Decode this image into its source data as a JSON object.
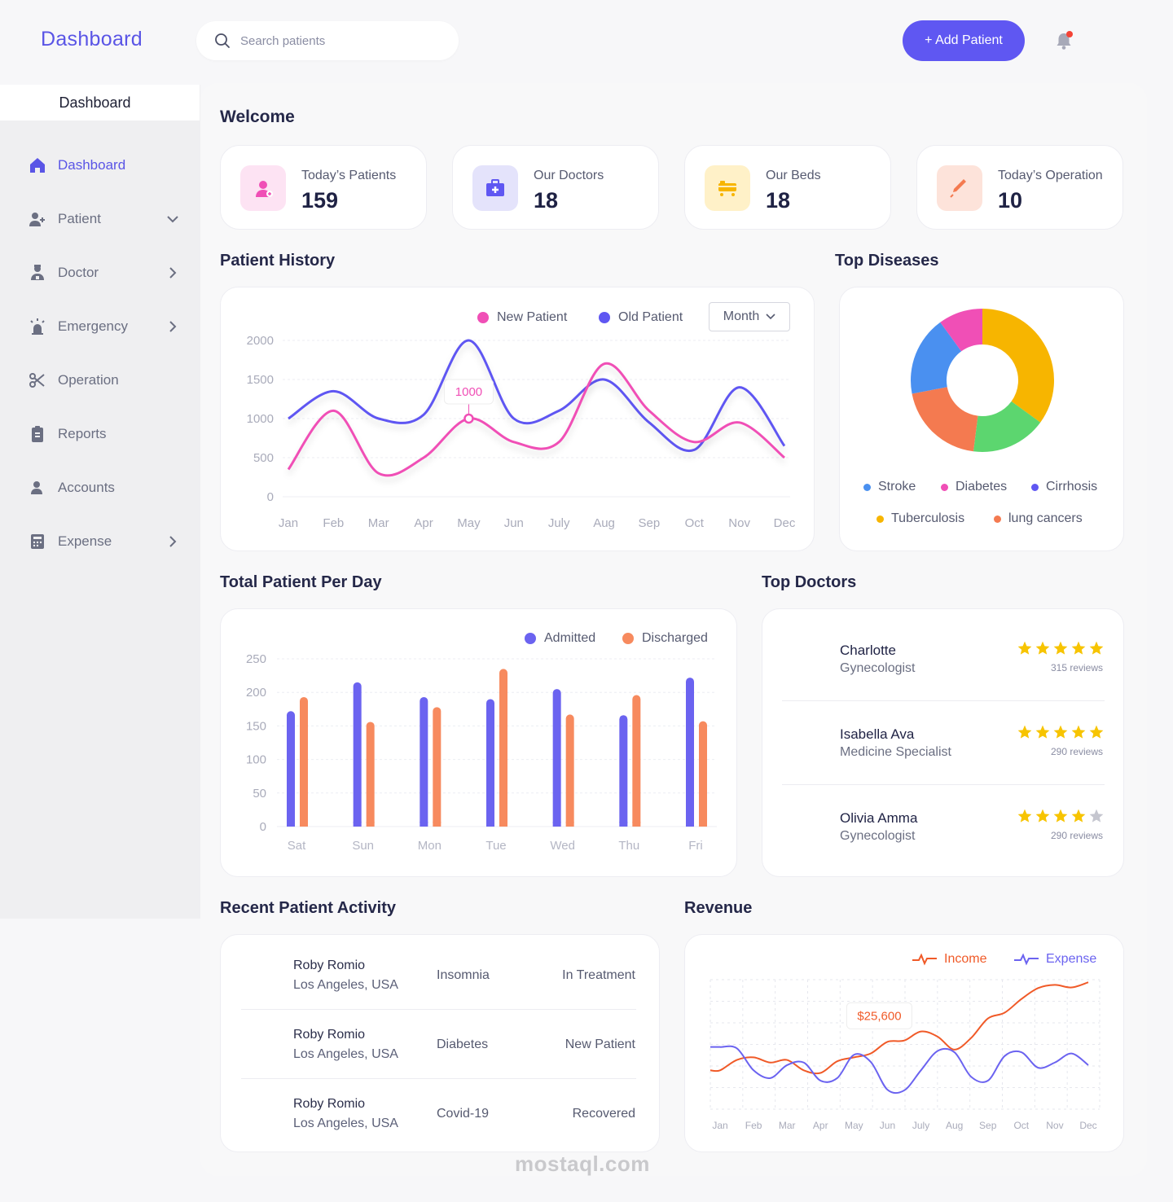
{
  "header": {
    "logo": "Dashboard",
    "search_placeholder": "Search patients",
    "add_button": "+ Add Patient"
  },
  "sidebar": {
    "title": "Dashboard",
    "items": [
      {
        "label": "Dashboard",
        "icon": "home-icon",
        "arrow": ""
      },
      {
        "label": "Patient",
        "icon": "add-user-icon",
        "arrow": "down"
      },
      {
        "label": "Doctor",
        "icon": "doctor-icon",
        "arrow": "right"
      },
      {
        "label": "Emergency",
        "icon": "siren-icon",
        "arrow": "right"
      },
      {
        "label": "Operation",
        "icon": "scissors-icon",
        "arrow": ""
      },
      {
        "label": "Reports",
        "icon": "clipboard-icon",
        "arrow": ""
      },
      {
        "label": "Accounts",
        "icon": "user-icon",
        "arrow": ""
      },
      {
        "label": "Expense",
        "icon": "calculator-icon",
        "arrow": "right"
      }
    ]
  },
  "welcome": "Welcome",
  "stats": [
    {
      "title": "Today’s Patients",
      "value": "159",
      "icon": "patient-icon",
      "bg": "#fde3f3",
      "fg": "#f04fb6"
    },
    {
      "title": "Our Doctors",
      "value": "18",
      "icon": "medical-kit-icon",
      "bg": "#e4e3fb",
      "fg": "#5f57f2"
    },
    {
      "title": "Our Beds",
      "value": "18",
      "icon": "bed-icon",
      "bg": "#fff1c8",
      "fg": "#f7b500"
    },
    {
      "title": "Today’s Operation",
      "value": "10",
      "icon": "syringe-icon",
      "bg": "#fde3da",
      "fg": "#f47a50"
    }
  ],
  "patient_history": {
    "title": "Patient History",
    "legend_new": "New Patient",
    "legend_old": "Old Patient",
    "period": "Month",
    "tooltip": "1000"
  },
  "top_diseases": {
    "title": "Top Diseases"
  },
  "total_per_day": {
    "title": "Total Patient Per Day",
    "legend_admitted": "Admitted",
    "legend_discharged": "Discharged"
  },
  "top_doctors": {
    "title": "Top Doctors",
    "doctors": [
      {
        "name": "Charlotte",
        "specialty": "Gynecologist",
        "reviews": "315 reviews",
        "rating": 5
      },
      {
        "name": "Isabella Ava",
        "specialty": "Medicine Specialist",
        "reviews": "290 reviews",
        "rating": 5
      },
      {
        "name": "Olivia Amma",
        "specialty": "Gynecologist",
        "reviews": "290 reviews",
        "rating": 4
      }
    ]
  },
  "recent_activity": {
    "title": "Recent Patient Activity",
    "rows": [
      {
        "name": "Roby Romio",
        "location": "Los Angeles, USA",
        "condition": "Insomnia",
        "status": "In Treatment"
      },
      {
        "name": "Roby Romio",
        "location": "Los Angeles, USA",
        "condition": "Diabetes",
        "status": "New Patient"
      },
      {
        "name": "Roby Romio",
        "location": "Los Angeles, USA",
        "condition": "Covid-19",
        "status": "Recovered"
      }
    ]
  },
  "revenue": {
    "title": "Revenue",
    "legend_income": "Income",
    "legend_expense": "Expense",
    "tooltip": "$25,600"
  },
  "watermark": {
    "text": "mostaql.com"
  },
  "colors": {
    "accent": "#5f57f2",
    "pink": "#f04fb6",
    "orange": "#f78a5e",
    "yellow": "#f7b500",
    "green": "#5cd66f",
    "blue": "#4a90f0",
    "red_dot": "#f44336"
  },
  "chart_data": [
    {
      "type": "line",
      "title": "Patient History",
      "categories": [
        "Jan",
        "Feb",
        "Mar",
        "Apr",
        "May",
        "Jun",
        "July",
        "Aug",
        "Sep",
        "Oct",
        "Nov",
        "Dec"
      ],
      "ylim": [
        0,
        2000
      ],
      "yticks": [
        0,
        500,
        1000,
        1500,
        2000
      ],
      "series": [
        {
          "name": "New Patient",
          "color": "#f04fb6",
          "values": [
            350,
            1100,
            300,
            500,
            1000,
            700,
            700,
            1700,
            1100,
            700,
            950,
            500
          ]
        },
        {
          "name": "Old Patient",
          "color": "#5f57f2",
          "values": [
            1000,
            1350,
            1000,
            1050,
            2000,
            1000,
            1100,
            1500,
            950,
            600,
            1400,
            650
          ]
        }
      ]
    },
    {
      "type": "pie",
      "title": "Top Diseases",
      "slices": [
        {
          "label": "Tuberculosis",
          "value": 35,
          "color": "#f7b500"
        },
        {
          "label": "Cirrhosis",
          "value": 0,
          "color": "#5f57f2"
        },
        {
          "label": "Stroke",
          "value": 18,
          "color": "#4a90f0"
        },
        {
          "label": "lung cancers",
          "value": 20,
          "color": "#f47a50"
        },
        {
          "label": "Diabetes",
          "value": 10,
          "color": "#f04fb6"
        }
      ],
      "legend": [
        "Stroke",
        "Diabetes",
        "Cirrhosis",
        "Tuberculosis",
        "lung cancers"
      ],
      "legend_colors": [
        "#4a90f0",
        "#f04fb6",
        "#5f57f2",
        "#f7b500",
        "#f47a50"
      ],
      "green_slice": {
        "label": "",
        "value": 17,
        "color": "#5cd66f"
      }
    },
    {
      "type": "bar",
      "title": "Total Patient Per Day",
      "categories": [
        "Sat",
        "Sun",
        "Mon",
        "Tue",
        "Wed",
        "Thu",
        "Fri"
      ],
      "ylim": [
        0,
        250
      ],
      "yticks": [
        0,
        50,
        100,
        150,
        200,
        250
      ],
      "series": [
        {
          "name": "Admitted",
          "color": "#6b63f0",
          "values": [
            172,
            215,
            193,
            190,
            205,
            166,
            222
          ]
        },
        {
          "name": "Discharged",
          "color": "#f78a5e",
          "values": [
            193,
            156,
            178,
            235,
            167,
            196,
            157
          ]
        }
      ]
    },
    {
      "type": "line",
      "title": "Revenue",
      "categories": [
        "Jan",
        "Feb",
        "Mar",
        "Apr",
        "May",
        "Jun",
        "July",
        "Aug",
        "Sep",
        "Oct",
        "Nov",
        "Dec"
      ],
      "ylim": [
        0,
        100
      ],
      "series": [
        {
          "name": "Income",
          "color": "#f05a28",
          "values": [
            30,
            40,
            38,
            28,
            40,
            52,
            60,
            46,
            70,
            85,
            96,
            98
          ]
        },
        {
          "name": "Expense",
          "color": "#6b63f0",
          "values": [
            48,
            30,
            34,
            22,
            42,
            15,
            30,
            44,
            22,
            44,
            36,
            34
          ]
        }
      ]
    }
  ]
}
